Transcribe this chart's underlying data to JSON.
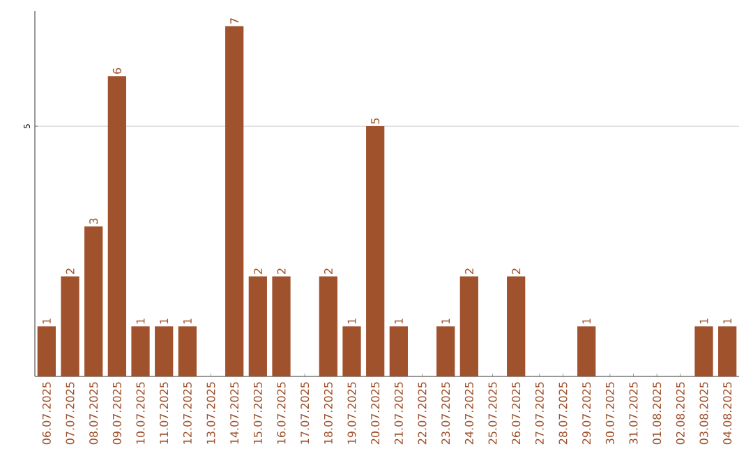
{
  "chart_data": {
    "type": "bar",
    "categories": [
      "06.07.2025",
      "07.07.2025",
      "08.07.2025",
      "09.07.2025",
      "10.07.2025",
      "11.07.2025",
      "12.07.2025",
      "13.07.2025",
      "14.07.2025",
      "15.07.2025",
      "16.07.2025",
      "17.07.2025",
      "18.07.2025",
      "19.07.2025",
      "20.07.2025",
      "21.07.2025",
      "22.07.2025",
      "23.07.2025",
      "24.07.2025",
      "25.07.2025",
      "26.07.2025",
      "27.07.2025",
      "28.07.2025",
      "29.07.2025",
      "30.07.2025",
      "31.07.2025",
      "01.08.2025",
      "02.08.2025",
      "03.08.2025",
      "04.08.2025"
    ],
    "values": [
      1,
      2,
      3,
      6,
      1,
      1,
      1,
      0,
      7,
      2,
      2,
      0,
      2,
      1,
      5,
      1,
      0,
      1,
      2,
      0,
      2,
      0,
      0,
      1,
      0,
      0,
      0,
      0,
      1,
      1
    ],
    "value_labels": [
      "1",
      "2",
      "3",
      "6",
      "1",
      "1",
      "1",
      null,
      "7",
      "2",
      "2",
      null,
      "2",
      "1",
      "5",
      "1",
      null,
      "1",
      "2",
      null,
      "2",
      null,
      null,
      "1",
      null,
      null,
      null,
      null,
      "1",
      "1"
    ],
    "color": "#a0522d",
    "ylim": [
      0,
      7.3
    ],
    "yticks": [
      5
    ],
    "grid": "y"
  }
}
